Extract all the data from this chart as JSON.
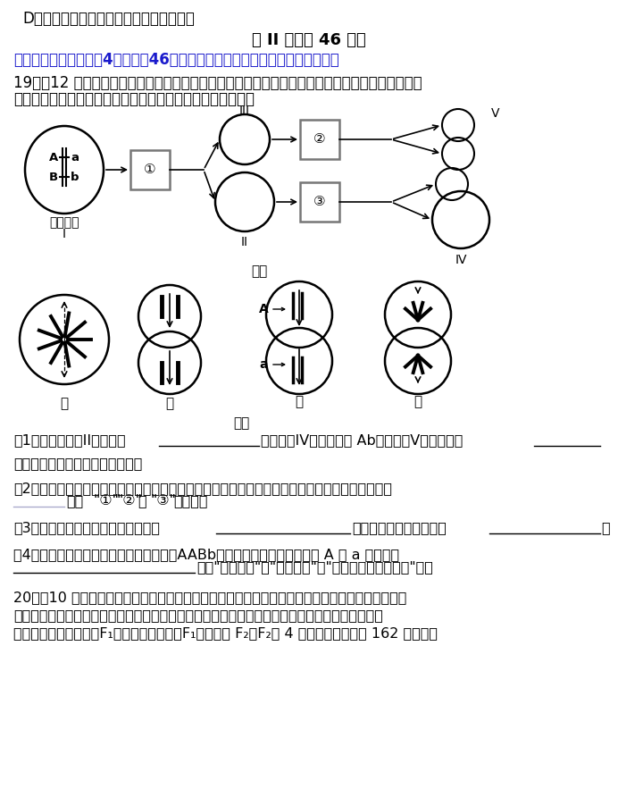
{
  "bg_color": "#ffffff",
  "line1": "D．图乙的变异类型属于染色体片段的缺失",
  "section_title": "第 II 卷（共 46 分）",
  "section2_title": "二、非选择题（本题共4小题，全46分。请将答案写在答题卡相应的位置上。）",
  "q19_line1": "19．（12 分）图一表示黄牛卵细胞的形成过程，图二为对黄牛精巢切片进行显微观察后绘制的细胞",
  "q19_line2": "分裂示意图（仅画出部分染色体）。据图分析回答下列问题。",
  "q1a": "（1）图一中细胞II的名称是",
  "q1b": "；若细胞IV的基因型是 Ab，则细胞V的基因型是",
  "q1c": "（不考虑基因突变和交叉互换）。",
  "q2a": "（2）若不考虑基因突变和同源染色体的非姐妹染色单体交叉互换，等位基因的分离发生于图一中的",
  "q2b": "（填",
  "q2c": "或",
  "q2d": "）过程。",
  "q3a": "（3）图二中含有同源染色体的细胞有",
  "q3b": "，称为初级精母细胞的有",
  "q3c": "。",
  "q4a": "（4）若产生图二中细胞的黄牛的基因型为AABb，则细胞丙中存在等位基因 A 和 a 的原因是",
  "q4b": "（填",
  "q4c": "）。",
  "q20_line1": "20．（10 分）某种植物的表型有高茎和矮茎、紫花和白花，其中紫花和白花这对相对性状由两对等",
  "q20_line2": "位基因控制，这两对等位基因中任意一对为隐性纯合则表现为白花。用纯合的高茎白花个体与纯合",
  "q20_line3": "的矮茎白花个体杂交，F₁表现为高茎紫花，F₁自交产生 F₂，F₂有 4 种表型：高茎紫花 162 株，高茎"
}
